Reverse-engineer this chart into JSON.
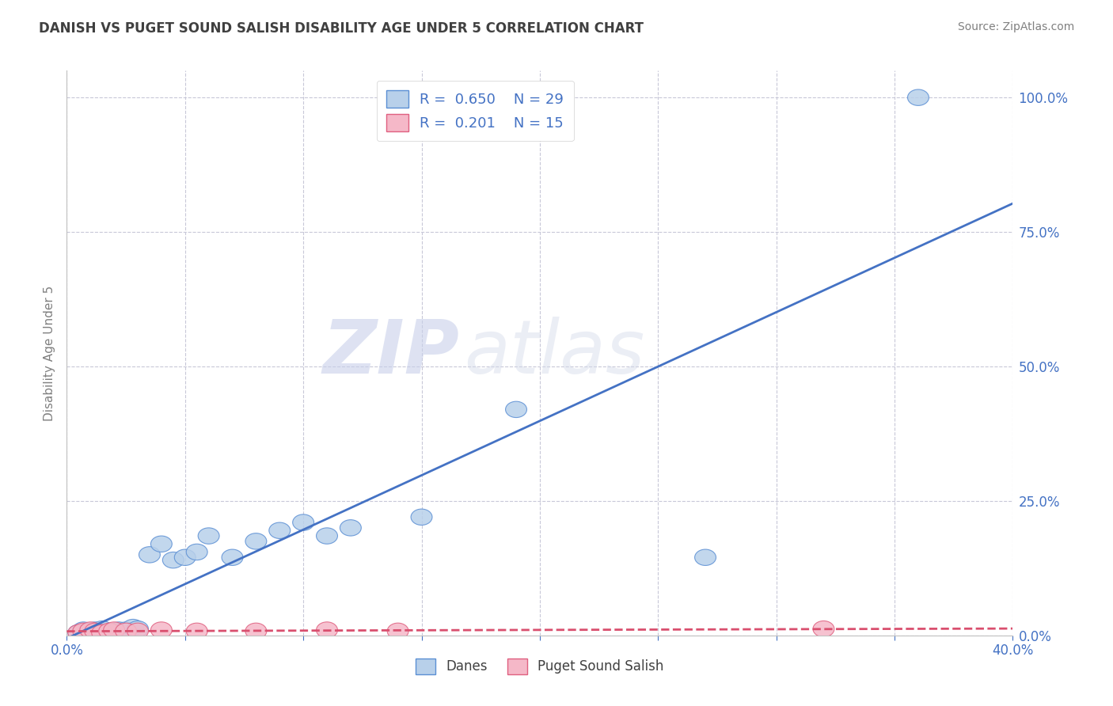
{
  "title": "DANISH VS PUGET SOUND SALISH DISABILITY AGE UNDER 5 CORRELATION CHART",
  "source": "Source: ZipAtlas.com",
  "xlabel": "",
  "ylabel": "Disability Age Under 5",
  "xlim": [
    0.0,
    0.4
  ],
  "ylim": [
    0.0,
    1.05
  ],
  "xticks": [
    0.0,
    0.05,
    0.1,
    0.15,
    0.2,
    0.25,
    0.3,
    0.35,
    0.4
  ],
  "xticklabels": [
    "0.0%",
    "",
    "",
    "",
    "",
    "",
    "",
    "",
    "40.0%"
  ],
  "ytick_positions": [
    0.0,
    0.25,
    0.5,
    0.75,
    1.0
  ],
  "yticklabels": [
    "0.0%",
    "25.0%",
    "50.0%",
    "75.0%",
    "100.0%"
  ],
  "danes_x": [
    0.005,
    0.007,
    0.009,
    0.01,
    0.011,
    0.012,
    0.015,
    0.018,
    0.02,
    0.022,
    0.025,
    0.028,
    0.03,
    0.035,
    0.04,
    0.045,
    0.05,
    0.055,
    0.06,
    0.07,
    0.08,
    0.09,
    0.1,
    0.11,
    0.12,
    0.15,
    0.19,
    0.27,
    0.36
  ],
  "danes_y": [
    0.005,
    0.01,
    0.005,
    0.008,
    0.005,
    0.01,
    0.012,
    0.005,
    0.008,
    0.01,
    0.01,
    0.015,
    0.012,
    0.15,
    0.17,
    0.14,
    0.145,
    0.155,
    0.185,
    0.145,
    0.175,
    0.195,
    0.21,
    0.185,
    0.2,
    0.22,
    0.42,
    0.145,
    1.0
  ],
  "salish_x": [
    0.005,
    0.007,
    0.01,
    0.012,
    0.015,
    0.018,
    0.02,
    0.025,
    0.03,
    0.04,
    0.055,
    0.08,
    0.11,
    0.14,
    0.32
  ],
  "salish_y": [
    0.005,
    0.008,
    0.01,
    0.008,
    0.005,
    0.008,
    0.01,
    0.008,
    0.008,
    0.01,
    0.008,
    0.008,
    0.01,
    0.008,
    0.012
  ],
  "danes_R": 0.65,
  "danes_N": 29,
  "salish_R": 0.201,
  "salish_N": 15,
  "danes_color": "#b8d0ea",
  "danes_edge_color": "#5b8fd4",
  "salish_color": "#f5b8c8",
  "salish_edge_color": "#e06080",
  "danes_line_color": "#4472c4",
  "salish_line_color": "#d94f6e",
  "grid_color": "#c8c8d8",
  "background_color": "#ffffff",
  "title_color": "#404040",
  "source_color": "#808080",
  "legend_text_color": "#4472c4",
  "axis_label_color": "#808080",
  "tick_color": "#4472c4",
  "watermark_zip_color": "#c8d0e8",
  "watermark_atlas_color": "#d8dce8"
}
